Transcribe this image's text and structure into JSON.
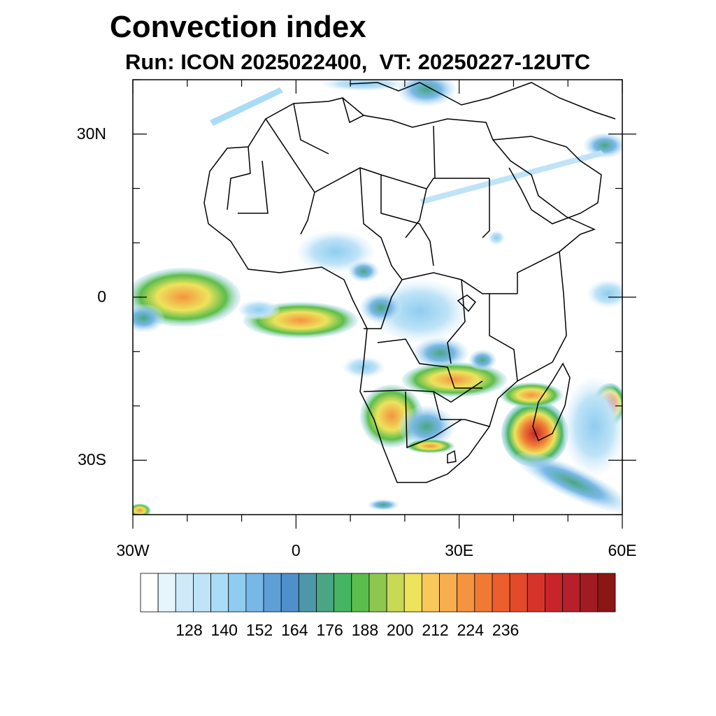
{
  "header": {
    "title": "Convection index",
    "subtitle": "Run: ICON 2025022400,  VT: 20250227-12UTC"
  },
  "map": {
    "lon_range": [
      -30,
      60
    ],
    "lat_range": [
      -40,
      40
    ],
    "lat_ticks": [
      {
        "value": 30,
        "label": "30N"
      },
      {
        "value": 0,
        "label": "0"
      },
      {
        "value": -30,
        "label": "30S"
      }
    ],
    "lon_ticks": [
      {
        "value": -30,
        "label": "30W"
      },
      {
        "value": 0,
        "label": "0"
      },
      {
        "value": 30,
        "label": "30E"
      },
      {
        "value": 60,
        "label": "60E"
      }
    ]
  },
  "colorbar": {
    "colors": [
      "#ffffff",
      "#e6f4fc",
      "#cfe9f8",
      "#bfe3f7",
      "#a9dcf6",
      "#8fcdf0",
      "#78b8e6",
      "#5e9fd8",
      "#4f90cc",
      "#4c98a8",
      "#4aa584",
      "#45b562",
      "#5bbd4c",
      "#8ec74e",
      "#c7d955",
      "#ede35c",
      "#f8c85a",
      "#f8ae4e",
      "#f49440",
      "#f07a34",
      "#ea5f2d",
      "#e24a2a",
      "#d6342a",
      "#c7242b",
      "#b5202a",
      "#a01c22",
      "#8a1616"
    ],
    "labels": [
      "128",
      "140",
      "152",
      "164",
      "176",
      "188",
      "200",
      "212",
      "224",
      "236"
    ]
  }
}
